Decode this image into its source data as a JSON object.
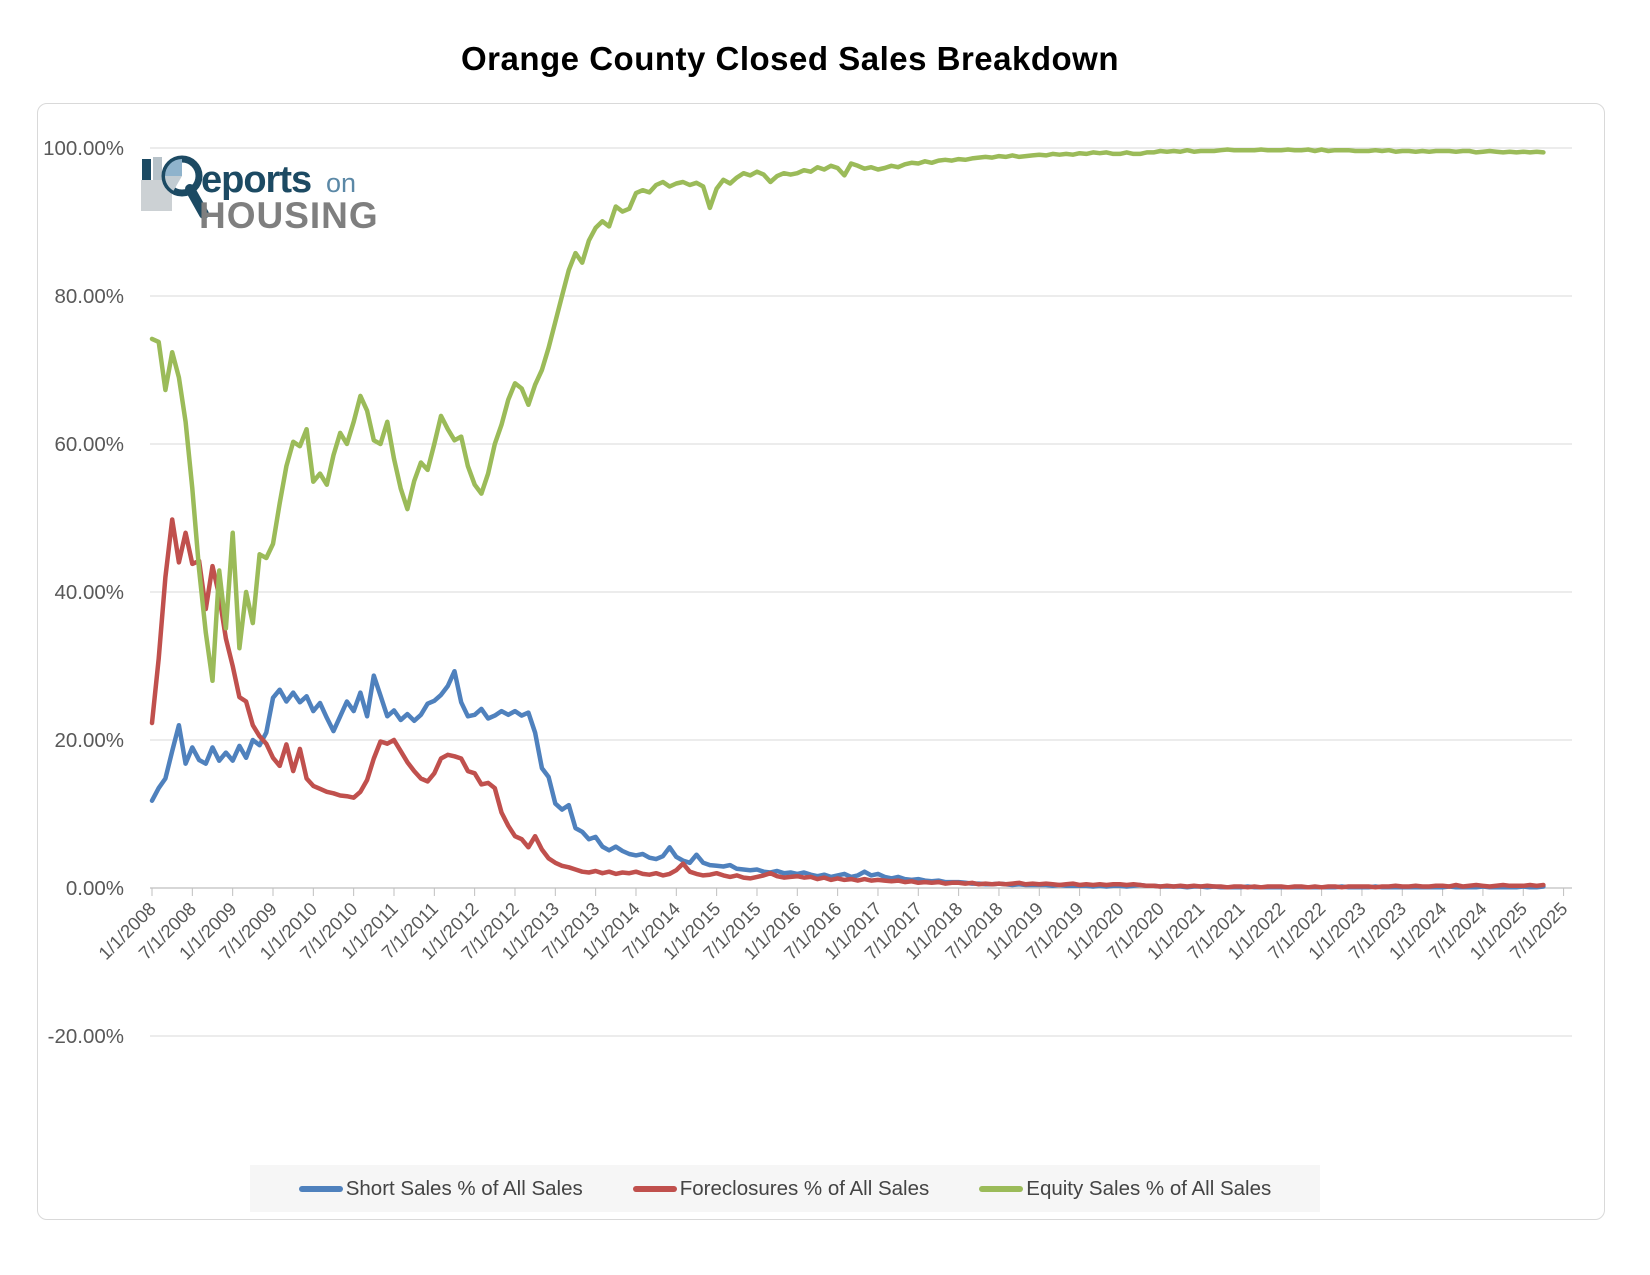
{
  "title": "Orange County Closed Sales Breakdown",
  "logo": {
    "top_text": "eports",
    "top_suffix": "on",
    "bottom_text": "HOUSING",
    "navy": "#1C4A63",
    "light_blue": "#8FB3CC",
    "gray": "#7F7F7F",
    "suffix_blue": "#5B88A6"
  },
  "legend": {
    "items": [
      {
        "label": "Short Sales % of All Sales"
      },
      {
        "label": "Foreclosures % of All Sales"
      },
      {
        "label": "Equity Sales % of All Sales"
      }
    ]
  },
  "y_axis": {
    "tick_labels": [
      "100.00%",
      "80.00%",
      "60.00%",
      "40.00%",
      "20.00%",
      "0.00%",
      "-20.00%"
    ],
    "values": [
      100,
      80,
      60,
      40,
      20,
      0,
      -20
    ]
  },
  "x_axis": {
    "tick_labels": [
      "1/1/2008",
      "7/1/2008",
      "1/1/2009",
      "7/1/2009",
      "1/1/2010",
      "7/1/2010",
      "1/1/2011",
      "7/1/2011",
      "1/1/2012",
      "7/1/2012",
      "1/1/2013",
      "7/1/2013",
      "1/1/2014",
      "7/1/2014",
      "1/1/2015",
      "7/1/2015",
      "1/1/2016",
      "7/1/2016",
      "1/1/2017",
      "7/1/2017",
      "1/1/2018",
      "7/1/2018",
      "1/1/2019",
      "7/1/2019",
      "1/1/2020",
      "7/1/2020",
      "1/1/2021",
      "7/1/2021",
      "1/1/2022",
      "7/1/2022",
      "1/1/2023",
      "7/1/2023",
      "1/1/2024",
      "7/1/2024",
      "1/1/2025",
      "7/1/2025"
    ]
  },
  "chart_data": {
    "type": "line",
    "title": "Orange County Closed Sales Breakdown",
    "x_start": "1/1/2008",
    "x_end": "4/1/2025",
    "x_interval": "monthly",
    "ylim": [
      -20,
      100
    ],
    "grid": "horizontal",
    "legend_position": "bottom",
    "colors": {
      "gridline": "#d9d9d9",
      "axis": "#bfbfbf",
      "tick_label": "#595959"
    },
    "series": [
      {
        "name": "Short Sales % of All Sales",
        "color": "#4F81BD",
        "values": [
          11.8,
          13.5,
          14.8,
          18.5,
          22,
          16.8,
          19,
          17.3,
          16.8,
          19,
          17.2,
          18.3,
          17.2,
          19.2,
          17.6,
          20,
          19.3,
          21,
          25.7,
          26.8,
          25.2,
          26.4,
          25.1,
          25.9,
          23.9,
          25,
          23,
          21.2,
          23.2,
          25.2,
          23.9,
          26.4,
          23.2,
          28.7,
          26,
          23.2,
          24,
          22.7,
          23.5,
          22.6,
          23.4,
          24.9,
          25.3,
          26.1,
          27.3,
          29.3,
          25.1,
          23.2,
          23.4,
          24.2,
          22.9,
          23.3,
          23.9,
          23.4,
          23.9,
          23.3,
          23.7,
          21,
          16.2,
          15,
          11.4,
          10.6,
          11.2,
          8.1,
          7.6,
          6.6,
          6.9,
          5.6,
          5.1,
          5.6,
          5,
          4.6,
          4.4,
          4.6,
          4.1,
          3.9,
          4.3,
          5.5,
          4.2,
          3.7,
          3.4,
          4.5,
          3.4,
          3.1,
          3,
          2.9,
          3.1,
          2.6,
          2.5,
          2.4,
          2.5,
          2.2,
          2.1,
          2.3,
          2,
          2.1,
          1.9,
          2.1,
          1.8,
          1.6,
          1.8,
          1.5,
          1.7,
          1.9,
          1.5,
          1.7,
          2.2,
          1.7,
          1.9,
          1.5,
          1.3,
          1.5,
          1.2,
          1.1,
          1.2,
          1,
          0.9,
          1,
          0.8,
          0.8,
          0.8,
          0.7,
          0.6,
          0.6,
          0.5,
          0.5,
          0.6,
          0.5,
          0.4,
          0.5,
          0.4,
          0.4,
          0.4,
          0.4,
          0.3,
          0.4,
          0.3,
          0.3,
          0.3,
          0.3,
          0.2,
          0.3,
          0.2,
          0.3,
          0.3,
          0.2,
          0.3,
          0.4,
          0.3,
          0.3,
          0.2,
          0.2,
          0.2,
          0.2,
          0.1,
          0.2,
          0.2,
          0.1,
          0.2,
          0.1,
          0.1,
          0.1,
          0.1,
          0.2,
          0.1,
          0.1,
          0.1,
          0.1,
          0.1,
          0.1,
          0.1,
          0.1,
          0.1,
          0.1,
          0.1,
          0.1,
          0.1,
          0.2,
          0.1,
          0.1,
          0.1,
          0.1,
          0.2,
          0.1,
          0.1,
          0.1,
          0.1,
          0.1,
          0.1,
          0.1,
          0.1,
          0.1,
          0.1,
          0.2,
          0.1,
          0.1,
          0.1,
          0.1,
          0.2,
          0.1,
          0.1,
          0.1,
          0.1,
          0.1,
          0.2,
          0.1,
          0.1,
          0.2
        ]
      },
      {
        "name": "Foreclosures % of All Sales",
        "color": "#C0504D",
        "values": [
          22.3,
          31,
          42,
          49.8,
          44,
          48,
          43.8,
          44.2,
          37.7,
          43.5,
          39.5,
          33.7,
          30,
          25.8,
          25.2,
          22,
          20.5,
          19.5,
          17.6,
          16.5,
          19.4,
          15.8,
          18.8,
          14.8,
          13.8,
          13.4,
          13,
          12.8,
          12.5,
          12.4,
          12.2,
          13,
          14.6,
          17.5,
          19.8,
          19.5,
          20,
          18.5,
          17,
          15.8,
          14.8,
          14.4,
          15.5,
          17.5,
          18,
          17.8,
          17.5,
          15.8,
          15.5,
          14,
          14.2,
          13.5,
          10.2,
          8.4,
          7,
          6.6,
          5.5,
          7,
          5.2,
          4,
          3.4,
          3,
          2.8,
          2.5,
          2.2,
          2.1,
          2.3,
          2,
          2.2,
          1.9,
          2.1,
          2,
          2.2,
          1.9,
          1.8,
          2,
          1.7,
          1.9,
          2.4,
          3.3,
          2.2,
          1.9,
          1.7,
          1.8,
          2,
          1.7,
          1.5,
          1.7,
          1.4,
          1.3,
          1.5,
          1.7,
          2,
          1.6,
          1.4,
          1.5,
          1.6,
          1.4,
          1.5,
          1.2,
          1.4,
          1.1,
          1.3,
          1.1,
          1.2,
          1,
          1.2,
          1,
          1.1,
          1,
          0.9,
          1,
          0.8,
          0.9,
          0.7,
          0.8,
          0.7,
          0.8,
          0.6,
          0.7,
          0.7,
          0.6,
          0.7,
          0.5,
          0.6,
          0.5,
          0.6,
          0.5,
          0.6,
          0.7,
          0.5,
          0.6,
          0.5,
          0.6,
          0.5,
          0.4,
          0.5,
          0.6,
          0.4,
          0.5,
          0.4,
          0.5,
          0.4,
          0.5,
          0.5,
          0.4,
          0.5,
          0.4,
          0.3,
          0.3,
          0.2,
          0.3,
          0.2,
          0.3,
          0.2,
          0.3,
          0.2,
          0.3,
          0.2,
          0.2,
          0.1,
          0.2,
          0.2,
          0.1,
          0.2,
          0.1,
          0.2,
          0.2,
          0.2,
          0.1,
          0.2,
          0.2,
          0.1,
          0.2,
          0.1,
          0.2,
          0.2,
          0.1,
          0.2,
          0.2,
          0.2,
          0.2,
          0.1,
          0.2,
          0.2,
          0.3,
          0.2,
          0.2,
          0.3,
          0.2,
          0.2,
          0.3,
          0.3,
          0.2,
          0.4,
          0.2,
          0.3,
          0.4,
          0.3,
          0.2,
          0.3,
          0.4,
          0.3,
          0.3,
          0.3,
          0.4,
          0.3,
          0.4
        ]
      },
      {
        "name": "Equity Sales % of All Sales",
        "color": "#9BBB59",
        "values": [
          74.2,
          73.8,
          67.3,
          72.4,
          69,
          63,
          54,
          43,
          34.5,
          28,
          42.9,
          35.1,
          48,
          32.4,
          40,
          35.8,
          45.1,
          44.6,
          46.5,
          52,
          57,
          60.3,
          59.7,
          62,
          54.9,
          56,
          54.5,
          58.5,
          61.5,
          60,
          63,
          66.5,
          64.5,
          60.5,
          60,
          63,
          58,
          54,
          51.2,
          55,
          57.5,
          56.5,
          60,
          63.8,
          62,
          60.5,
          61,
          57,
          54.5,
          53.3,
          56,
          60,
          62.6,
          66,
          68.2,
          67.5,
          65.3,
          68,
          70,
          73,
          76.5,
          80,
          83.5,
          85.8,
          84.5,
          87.5,
          89.2,
          90.1,
          89.4,
          92.1,
          91.4,
          91.8,
          93.9,
          94.3,
          94,
          95,
          95.4,
          94.8,
          95.2,
          95.4,
          95,
          95.3,
          94.8,
          91.9,
          94.5,
          95.7,
          95.2,
          96,
          96.6,
          96.3,
          96.8,
          96.4,
          95.4,
          96.2,
          96.6,
          96.4,
          96.6,
          97,
          96.8,
          97.4,
          97.1,
          97.6,
          97.3,
          96.3,
          97.9,
          97.6,
          97.2,
          97.4,
          97.1,
          97.3,
          97.6,
          97.4,
          97.8,
          98,
          97.9,
          98.2,
          98,
          98.3,
          98.4,
          98.3,
          98.5,
          98.4,
          98.6,
          98.7,
          98.8,
          98.7,
          98.9,
          98.8,
          99,
          98.8,
          98.9,
          99,
          99.1,
          99,
          99.2,
          99.1,
          99.2,
          99.1,
          99.3,
          99.2,
          99.4,
          99.3,
          99.4,
          99.2,
          99.2,
          99.4,
          99.2,
          99.2,
          99.4,
          99.4,
          99.6,
          99.5,
          99.6,
          99.5,
          99.7,
          99.5,
          99.6,
          99.6,
          99.6,
          99.7,
          99.8,
          99.7,
          99.7,
          99.7,
          99.7,
          99.8,
          99.7,
          99.7,
          99.7,
          99.8,
          99.7,
          99.7,
          99.8,
          99.6,
          99.8,
          99.6,
          99.7,
          99.7,
          99.7,
          99.6,
          99.6,
          99.6,
          99.7,
          99.6,
          99.7,
          99.5,
          99.6,
          99.6,
          99.5,
          99.6,
          99.5,
          99.6,
          99.6,
          99.6,
          99.5,
          99.6,
          99.6,
          99.4,
          99.5,
          99.6,
          99.5,
          99.4,
          99.5,
          99.4,
          99.5,
          99.4,
          99.5,
          99.4
        ]
      }
    ]
  }
}
